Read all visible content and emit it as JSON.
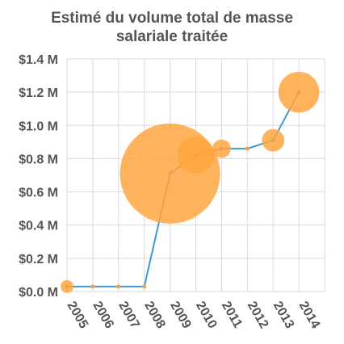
{
  "chart_data": {
    "type": "line",
    "title_lines": [
      "Estimé du volume total de masse",
      "salariale traitée"
    ],
    "xlabel": "",
    "ylabel": "",
    "categories": [
      "2005",
      "2006",
      "2007",
      "2008",
      "2009",
      "2010",
      "2011",
      "2012",
      "2013",
      "2014"
    ],
    "series": [
      {
        "values": [
          0.03,
          0.03,
          0.03,
          0.03,
          0.71,
          0.82,
          0.86,
          0.86,
          0.91,
          1.2
        ]
      }
    ],
    "bubble_sizes": [
      0.1,
      0,
      0,
      0,
      6.0,
      0.8,
      0.2,
      0,
      0.3,
      1.0
    ],
    "y_ticks": [
      "$0.0 M",
      "$0.2 M",
      "$0.4 M",
      "$0.6 M",
      "$0.8 M",
      "$1.0 M",
      "$1.2 M",
      "$1.4 M"
    ],
    "ylim": [
      0,
      1.4
    ],
    "grid": true,
    "colors": {
      "line": "#3a9ad9",
      "bubble": "#ffa640",
      "point": "#f0a050",
      "grid": "#d9d9d9",
      "text": "#555555"
    }
  }
}
